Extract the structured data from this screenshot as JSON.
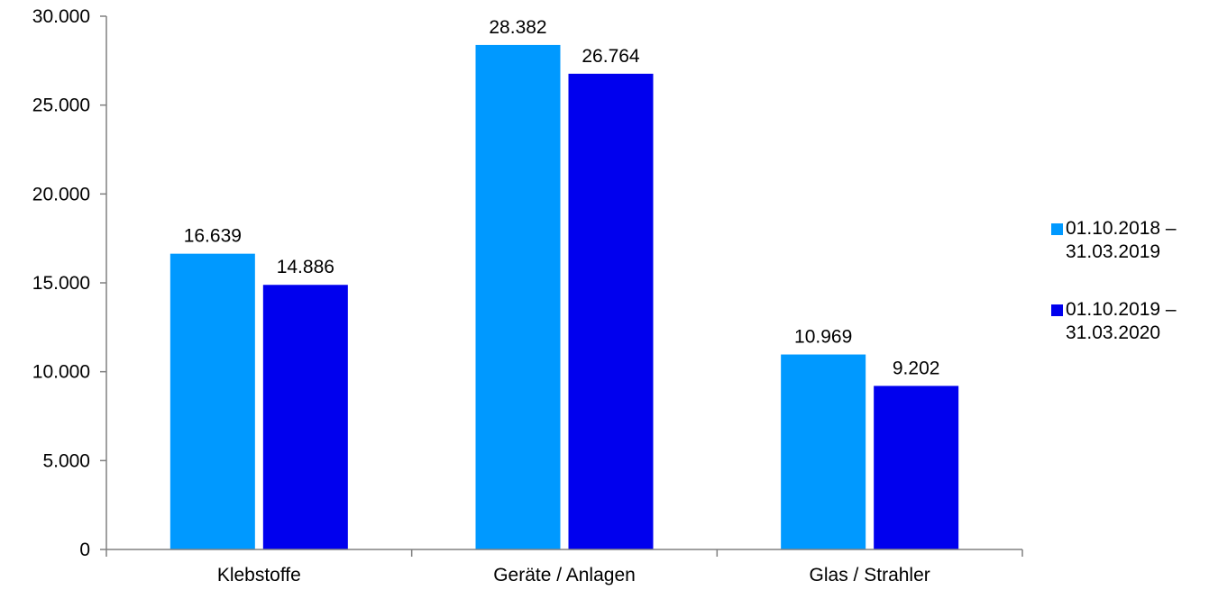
{
  "chart_data": {
    "type": "bar",
    "categories": [
      "Klebstoffe",
      "Geräte / Anlagen",
      "Glas / Strahler"
    ],
    "series": [
      {
        "name": "01.10.2018 – 31.03.2019",
        "name_lines": [
          "01.10.2018 –",
          "31.03.2019"
        ],
        "color": "#0099ff",
        "values": [
          16639,
          28382,
          10969
        ],
        "labels": [
          "16.639",
          "28.382",
          "10.969"
        ]
      },
      {
        "name": "01.10.2019 – 31.03.2020",
        "name_lines": [
          "01.10.2019 –",
          "31.03.2020"
        ],
        "color": "#0000ee",
        "values": [
          14886,
          26764,
          9202
        ],
        "labels": [
          "14.886",
          "26.764",
          "9.202"
        ]
      }
    ],
    "ylim": [
      0,
      30000
    ],
    "yticks": [
      0,
      5000,
      10000,
      15000,
      20000,
      25000,
      30000
    ],
    "ytick_labels": [
      "0",
      "5.000",
      "10.000",
      "15.000",
      "20.000",
      "25.000",
      "30.000"
    ],
    "grid": false,
    "legend_position": "right"
  }
}
